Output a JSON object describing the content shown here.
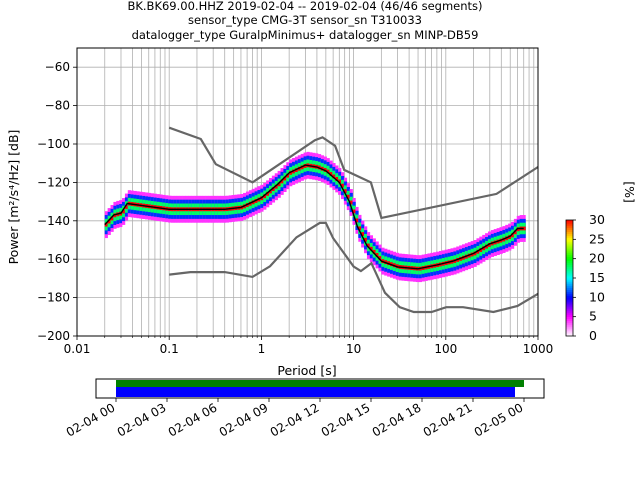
{
  "chart_data": {
    "type": "heatmap",
    "title_lines": [
      "BK.BK69.00.HHZ   2019-02-04 -- 2019-02-04  (46/46 segments)",
      "sensor_type CMG-3T sensor_sn T310033",
      "datalogger_type GuralpMinimus+ datalogger_sn MINP-DB59"
    ],
    "xlabel": "Period [s]",
    "ylabel": "Power [m²/s⁴/Hz] [dB]",
    "xscale": "log",
    "xlim": [
      0.01,
      1000
    ],
    "ylim": [
      -200,
      -50
    ],
    "x_ticks": [
      {
        "value": 0.01,
        "label": "0.01"
      },
      {
        "value": 0.1,
        "label": "0.1"
      },
      {
        "value": 1,
        "label": "1"
      },
      {
        "value": 10,
        "label": "10"
      },
      {
        "value": 100,
        "label": "100"
      },
      {
        "value": 1000,
        "label": "1000"
      }
    ],
    "y_ticks": [
      -60,
      -80,
      -100,
      -120,
      -140,
      -160,
      -180,
      -200
    ],
    "grid": true,
    "colorbar": {
      "label": "[%]",
      "min": 0,
      "max": 30,
      "ticks": [
        0,
        5,
        10,
        15,
        20,
        25,
        30
      ],
      "colormap": "pqlx",
      "colors": [
        "#ffffff",
        "#ff00ff",
        "#0000ff",
        "#00ffff",
        "#00ff00",
        "#ffff00",
        "#ff0000"
      ]
    },
    "noise_models": [
      {
        "name": "NHNM",
        "color": "#666666",
        "points": [
          [
            0.1,
            -91.5
          ],
          [
            0.22,
            -97.4
          ],
          [
            0.32,
            -110.5
          ],
          [
            0.8,
            -120
          ],
          [
            3.8,
            -98
          ],
          [
            4.6,
            -96.5
          ],
          [
            6.3,
            -101
          ],
          [
            7.9,
            -113.5
          ],
          [
            15.4,
            -120
          ],
          [
            20,
            -138.5
          ],
          [
            354.8,
            -126
          ],
          [
            1000,
            -112
          ]
        ]
      },
      {
        "name": "NLNM",
        "color": "#666666",
        "points": [
          [
            0.1,
            -168
          ],
          [
            0.17,
            -166.7
          ],
          [
            0.4,
            -166.7
          ],
          [
            0.8,
            -169.2
          ],
          [
            1.24,
            -163.7
          ],
          [
            2.4,
            -148.6
          ],
          [
            4.3,
            -141.1
          ],
          [
            5.0,
            -141.1
          ],
          [
            6.0,
            -149
          ],
          [
            10.0,
            -163.8
          ],
          [
            12.0,
            -166.2
          ],
          [
            15.6,
            -162.1
          ],
          [
            21.9,
            -177.5
          ],
          [
            31.6,
            -185
          ],
          [
            45,
            -187.5
          ],
          [
            70,
            -187.5
          ],
          [
            101,
            -185
          ],
          [
            154,
            -185
          ],
          [
            328,
            -187.5
          ],
          [
            600,
            -184.4
          ],
          [
            1000,
            -178
          ]
        ]
      }
    ],
    "mode_line": {
      "color": "#000000",
      "points": [
        [
          0.02,
          -142
        ],
        [
          0.025,
          -137
        ],
        [
          0.03,
          -136
        ],
        [
          0.035,
          -131
        ],
        [
          0.05,
          -132
        ],
        [
          0.1,
          -134
        ],
        [
          0.2,
          -134
        ],
        [
          0.4,
          -134
        ],
        [
          0.6,
          -133
        ],
        [
          1.0,
          -128
        ],
        [
          1.5,
          -121
        ],
        [
          2.0,
          -115
        ],
        [
          3.0,
          -111
        ],
        [
          4.0,
          -112
        ],
        [
          5.0,
          -114
        ],
        [
          7.0,
          -120
        ],
        [
          9.0,
          -130
        ],
        [
          11,
          -143
        ],
        [
          14,
          -153
        ],
        [
          20,
          -161
        ],
        [
          30,
          -164
        ],
        [
          50,
          -165
        ],
        [
          80,
          -163
        ],
        [
          120,
          -161
        ],
        [
          200,
          -157
        ],
        [
          300,
          -152
        ],
        [
          400,
          -150
        ],
        [
          500,
          -148
        ],
        [
          600,
          -144
        ],
        [
          700,
          -144
        ]
      ]
    },
    "density_bands": [
      {
        "percent": 30,
        "spread": 0
      },
      {
        "percent": 18,
        "spread": 2
      },
      {
        "percent": 11,
        "spread": 4
      },
      {
        "percent": 4,
        "spread": 6
      }
    ]
  },
  "time_bar": {
    "ticks": [
      "02-04 00",
      "02-04 03",
      "02-04 06",
      "02-04 09",
      "02-04 12",
      "02-04 15",
      "02-04 18",
      "02-04 21",
      "02-05 00"
    ],
    "bars": [
      {
        "name": "data",
        "color": "#008000"
      },
      {
        "name": "used",
        "color": "#0000ff"
      }
    ]
  }
}
